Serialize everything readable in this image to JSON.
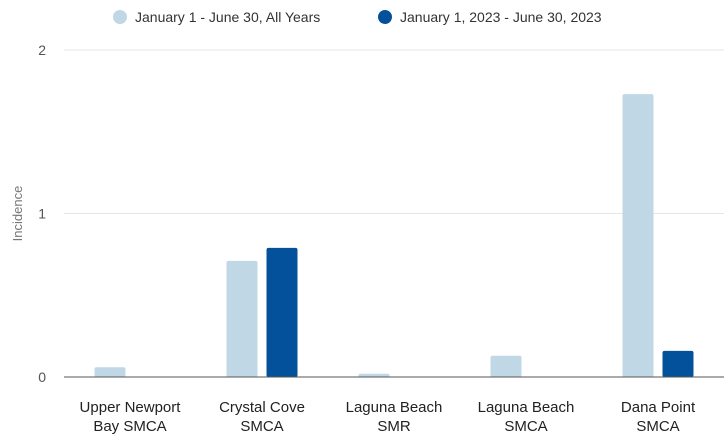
{
  "chart_data": {
    "type": "bar",
    "ylabel": "Incidence",
    "xlabel": "",
    "ylim": [
      0,
      2
    ],
    "yticks": [
      0,
      1,
      2
    ],
    "grid": true,
    "legend_position": "top",
    "categories": [
      [
        "Upper Newport",
        "Bay SMCA"
      ],
      [
        "Crystal Cove",
        "SMCA"
      ],
      [
        "Laguna Beach",
        "SMR"
      ],
      [
        "Laguna Beach",
        "SMCA"
      ],
      [
        "Dana Point",
        "SMCA"
      ]
    ],
    "series": [
      {
        "name": "January 1 - June 30, All Years",
        "color": "#c0d7e6",
        "values": [
          0.06,
          0.71,
          0.02,
          0.13,
          1.73
        ]
      },
      {
        "name": "January 1, 2023 - June 30, 2023",
        "color": "#04519b",
        "values": [
          0,
          0.79,
          0,
          0,
          0.16
        ]
      }
    ]
  }
}
